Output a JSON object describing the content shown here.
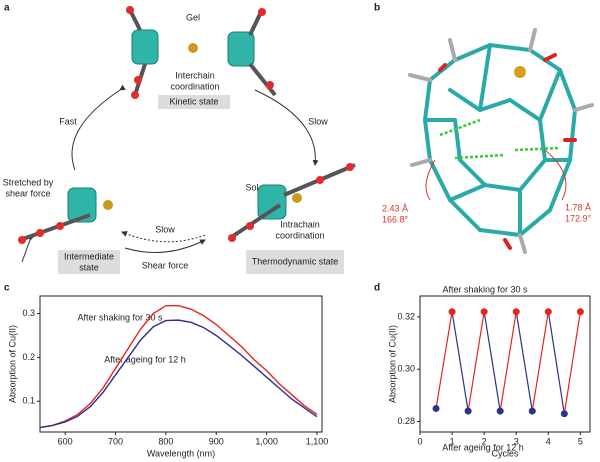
{
  "panel_labels": [
    "a",
    "b",
    "c",
    "d"
  ],
  "diagram_a": {
    "gel": "Gel",
    "interchain": [
      "Interchain",
      "coordination"
    ],
    "kinetic": "Kinetic state",
    "fast": "Fast",
    "slow_right": "Slow",
    "sol": "Sol",
    "intrachain": [
      "Intrachain",
      "coordination"
    ],
    "thermodynamic": "Thermodynamic state",
    "stretched": [
      "Stretched by",
      "shear force"
    ],
    "intermediate": [
      "Intermediate",
      "state"
    ],
    "slow_bottom": "Slow",
    "shear": "Shear force"
  },
  "diagram_b": {
    "left_distance": "2.43 Å",
    "left_angle": "166.8°",
    "right_distance": "1.78 Å",
    "right_angle": "172.9°"
  },
  "chart_data": [
    {
      "type": "line",
      "x_label": "Wavelength (nm)",
      "y_label": "Absorption of Cu(II)",
      "x": [
        550,
        575,
        600,
        625,
        650,
        675,
        700,
        725,
        750,
        775,
        800,
        825,
        850,
        875,
        900,
        925,
        950,
        975,
        1000,
        1025,
        1050,
        1075,
        1100
      ],
      "series": [
        {
          "name": "After shaking for 30 s",
          "color": "#e8231c",
          "values": [
            0.04,
            0.045,
            0.055,
            0.07,
            0.095,
            0.13,
            0.175,
            0.22,
            0.265,
            0.3,
            0.318,
            0.318,
            0.31,
            0.295,
            0.275,
            0.25,
            0.225,
            0.195,
            0.17,
            0.14,
            0.115,
            0.09,
            0.07
          ]
        },
        {
          "name": "After ageing for 12 h",
          "color": "#2e2f8f",
          "values": [
            0.04,
            0.045,
            0.053,
            0.066,
            0.088,
            0.12,
            0.16,
            0.2,
            0.24,
            0.27,
            0.284,
            0.285,
            0.28,
            0.268,
            0.25,
            0.228,
            0.205,
            0.18,
            0.155,
            0.13,
            0.105,
            0.085,
            0.065
          ]
        }
      ],
      "xlim": [
        550,
        1110
      ],
      "xticks": [
        600,
        700,
        800,
        900,
        {
          "value": 1000,
          "label": "1,000"
        },
        {
          "value": 1100,
          "label": "1,100"
        }
      ],
      "ylim": [
        0.03,
        0.34
      ],
      "yticks": [
        0.1,
        0.2,
        0.3
      ]
    },
    {
      "type": "zigzag",
      "x_label": "Cycles",
      "y_label": "Absorption of Cu(II)",
      "series": [
        {
          "name": "After shaking for 30 s",
          "color": "#e8231c",
          "x": [
            1,
            2,
            3,
            4,
            5
          ],
          "values": [
            0.322,
            0.322,
            0.322,
            0.322,
            0.322
          ]
        },
        {
          "name": "After ageing for 12 h",
          "color": "#2e2f8f",
          "x": [
            0.5,
            1.5,
            2.5,
            3.5,
            4.5
          ],
          "values": [
            0.285,
            0.284,
            0.284,
            0.284,
            0.283
          ]
        }
      ],
      "xlim": [
        0,
        5.3
      ],
      "xticks": [
        0,
        1,
        2,
        3,
        4,
        5
      ],
      "ylim": [
        0.276,
        0.328
      ],
      "yticks": [
        0.28,
        {
          "value": 0.3,
          "label": "0.30"
        },
        0.32
      ]
    }
  ]
}
